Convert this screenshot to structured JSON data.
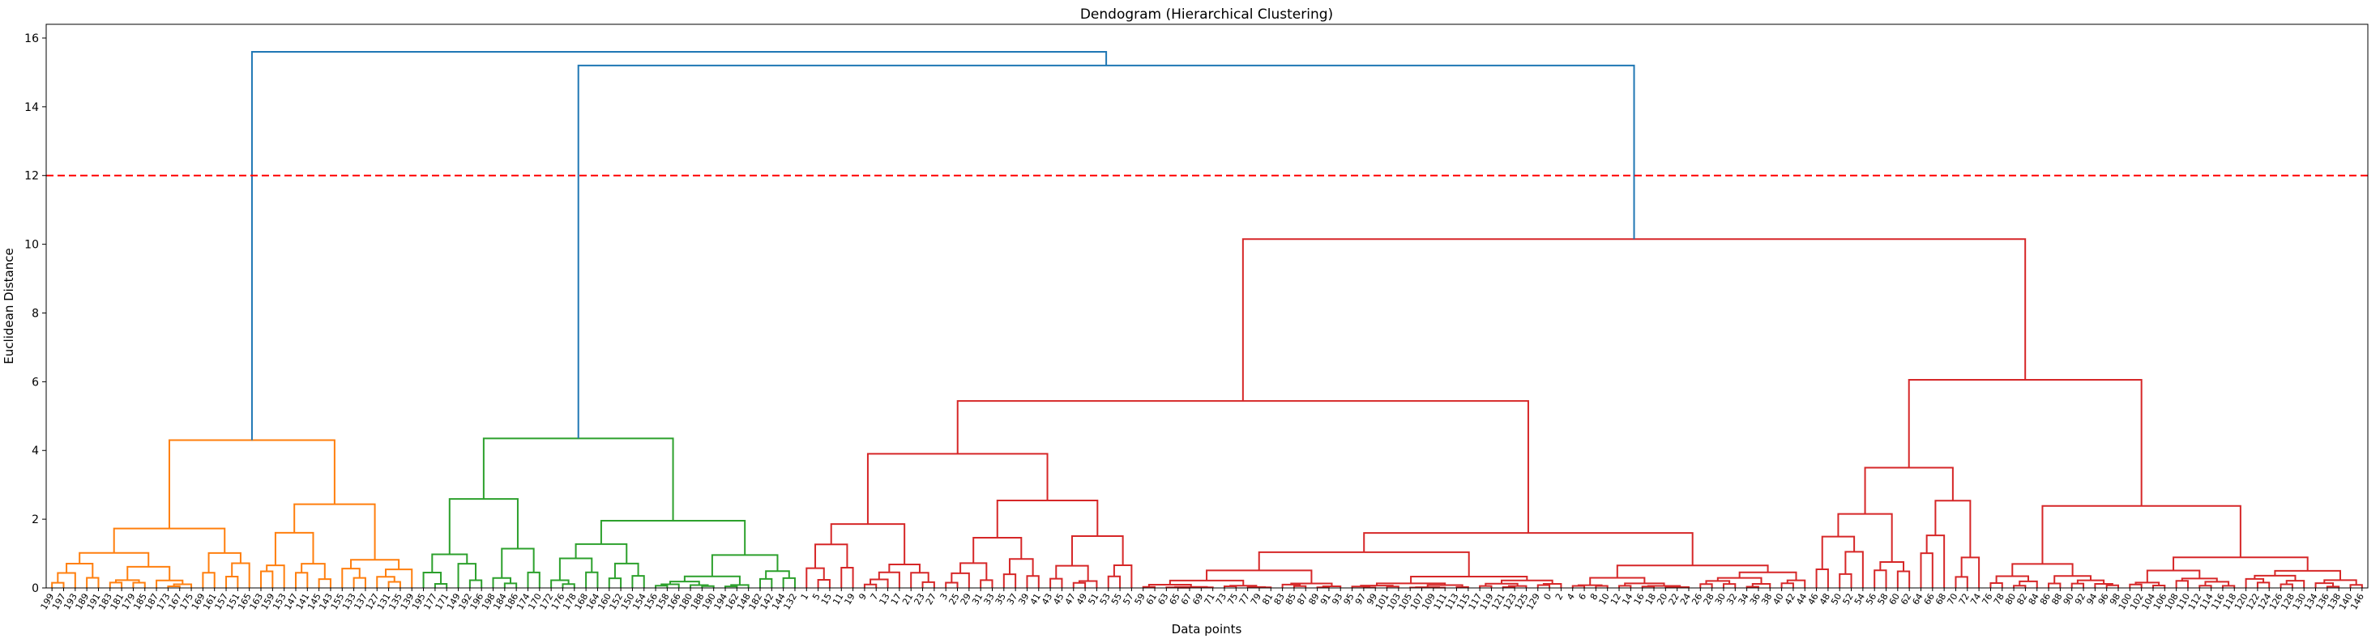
{
  "chart_data": {
    "type": "dendrogram",
    "title": "Dendogram (Hierarchical Clustering)",
    "xlabel": "Data points",
    "ylabel": "Euclidean Distance",
    "ylim": [
      0,
      16.4
    ],
    "yticks": [
      "0",
      "2",
      "4",
      "6",
      "8",
      "10",
      "12",
      "14",
      "16"
    ],
    "threshold": 12,
    "threshold_color": "#ff0000",
    "colors": {
      "orange": "#ff7f0e",
      "green": "#2ca02c",
      "red": "#d62728",
      "above": "#1f77b4"
    },
    "leaves": [
      "199",
      "197",
      "193",
      "189",
      "191",
      "183",
      "181",
      "179",
      "185",
      "187",
      "173",
      "167",
      "175",
      "169",
      "161",
      "157",
      "151",
      "165",
      "163",
      "159",
      "153",
      "147",
      "141",
      "145",
      "143",
      "155",
      "133",
      "137",
      "127",
      "131",
      "135",
      "139",
      "195",
      "177",
      "171",
      "149",
      "192",
      "196",
      "198",
      "184",
      "186",
      "174",
      "170",
      "172",
      "176",
      "178",
      "168",
      "164",
      "160",
      "152",
      "150",
      "154",
      "156",
      "158",
      "166",
      "180",
      "188",
      "190",
      "194",
      "162",
      "148",
      "182",
      "142",
      "144",
      "132",
      "1",
      "5",
      "15",
      "11",
      "19",
      "9",
      "7",
      "13",
      "17",
      "21",
      "23",
      "27",
      "3",
      "25",
      "29",
      "31",
      "33",
      "35",
      "37",
      "39",
      "41",
      "43",
      "45",
      "47",
      "49",
      "51",
      "53",
      "55",
      "57",
      "59",
      "61",
      "63",
      "65",
      "67",
      "69",
      "71",
      "73",
      "75",
      "77",
      "79",
      "81",
      "83",
      "85",
      "87",
      "89",
      "91",
      "93",
      "95",
      "97",
      "99",
      "101",
      "103",
      "105",
      "107",
      "109",
      "111",
      "113",
      "115",
      "117",
      "119",
      "121",
      "123",
      "125",
      "129",
      "0",
      "2",
      "4",
      "6",
      "8",
      "10",
      "12",
      "14",
      "16",
      "18",
      "20",
      "22",
      "24",
      "26",
      "28",
      "30",
      "32",
      "34",
      "36",
      "38",
      "40",
      "42",
      "44",
      "46",
      "48",
      "50",
      "52",
      "54",
      "56",
      "58",
      "60",
      "62",
      "64",
      "66",
      "68",
      "70",
      "72",
      "74",
      "76",
      "78",
      "80",
      "82",
      "84",
      "86",
      "88",
      "90",
      "92",
      "94",
      "96",
      "98",
      "100",
      "102",
      "104",
      "106",
      "108",
      "110",
      "112",
      "114",
      "116",
      "118",
      "120",
      "122",
      "124",
      "126",
      "128",
      "130",
      "134",
      "136",
      "138",
      "140",
      "146"
    ],
    "clusters": [
      {
        "color": "orange",
        "leaves": 32,
        "height": 4.3
      },
      {
        "color": "green",
        "leaves": 33,
        "height": 4.35
      },
      {
        "color": "red",
        "leaves": 135,
        "height": 10.15
      }
    ],
    "top_merges": [
      {
        "between": [
          "green",
          "red"
        ],
        "height": 15.2
      },
      {
        "between": [
          "orange",
          "green+red"
        ],
        "height": 15.6
      }
    ]
  }
}
